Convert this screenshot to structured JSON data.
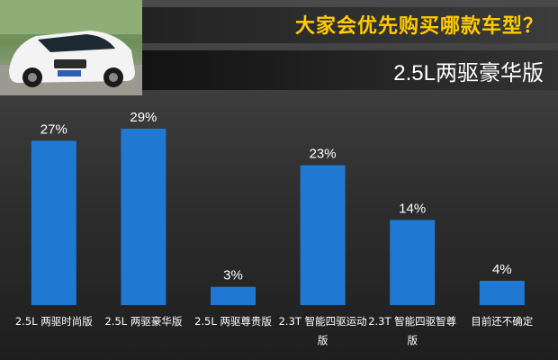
{
  "header": {
    "title": "大家会优先购买哪款车型？",
    "subtitle": "2.5L两驱豪华版"
  },
  "photo": {
    "icon": "car-photo-icon"
  },
  "colors": {
    "bar": "#1f78d1",
    "title": "#ffcc00",
    "label": "#ffffff"
  },
  "chart_data": {
    "type": "bar",
    "categories": [
      [
        "2.5L 两驱时尚版"
      ],
      [
        "2.5L 两驱豪华版"
      ],
      [
        "2.5L 两驱尊贵版"
      ],
      [
        "2.3T 智能四驱运动",
        "版"
      ],
      [
        "2.3T 智能四驱智尊",
        "版"
      ],
      [
        "目前还不确定"
      ]
    ],
    "values": [
      27,
      29,
      3,
      23,
      14,
      4
    ],
    "value_labels": [
      "27%",
      "29%",
      "3%",
      "23%",
      "14%",
      "4%"
    ],
    "ylim": [
      0,
      29
    ],
    "grid": false,
    "legend": "none"
  }
}
